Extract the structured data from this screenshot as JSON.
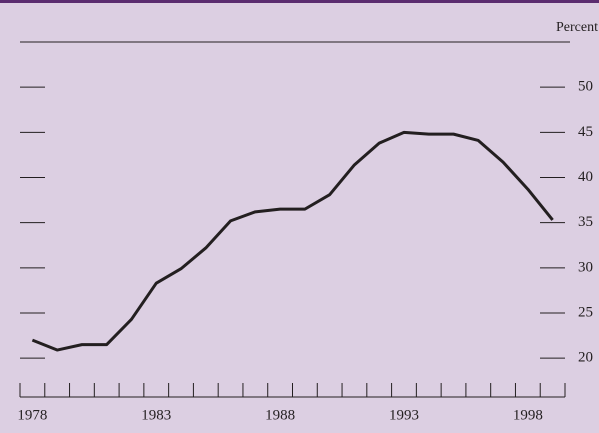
{
  "chart_data": {
    "type": "line",
    "y_label": "Percent",
    "categories": [
      "1978",
      null,
      null,
      null,
      null,
      "1983",
      null,
      null,
      null,
      null,
      "1988",
      null,
      null,
      null,
      null,
      "1993",
      null,
      null,
      null,
      null,
      "1998",
      null
    ],
    "series": [
      {
        "color": "#231f20",
        "values": [
          22.0,
          20.9,
          21.5,
          21.5,
          24.3,
          28.3,
          29.9,
          32.2,
          35.2,
          36.2,
          36.5,
          36.5,
          38.1,
          41.4,
          43.8,
          45.0,
          44.8,
          44.8,
          44.1,
          41.7,
          38.7,
          35.3
        ]
      }
    ],
    "ylim": [
      15.7,
      55
    ],
    "yticks": [
      20,
      25,
      30,
      35,
      40,
      45,
      50
    ]
  }
}
